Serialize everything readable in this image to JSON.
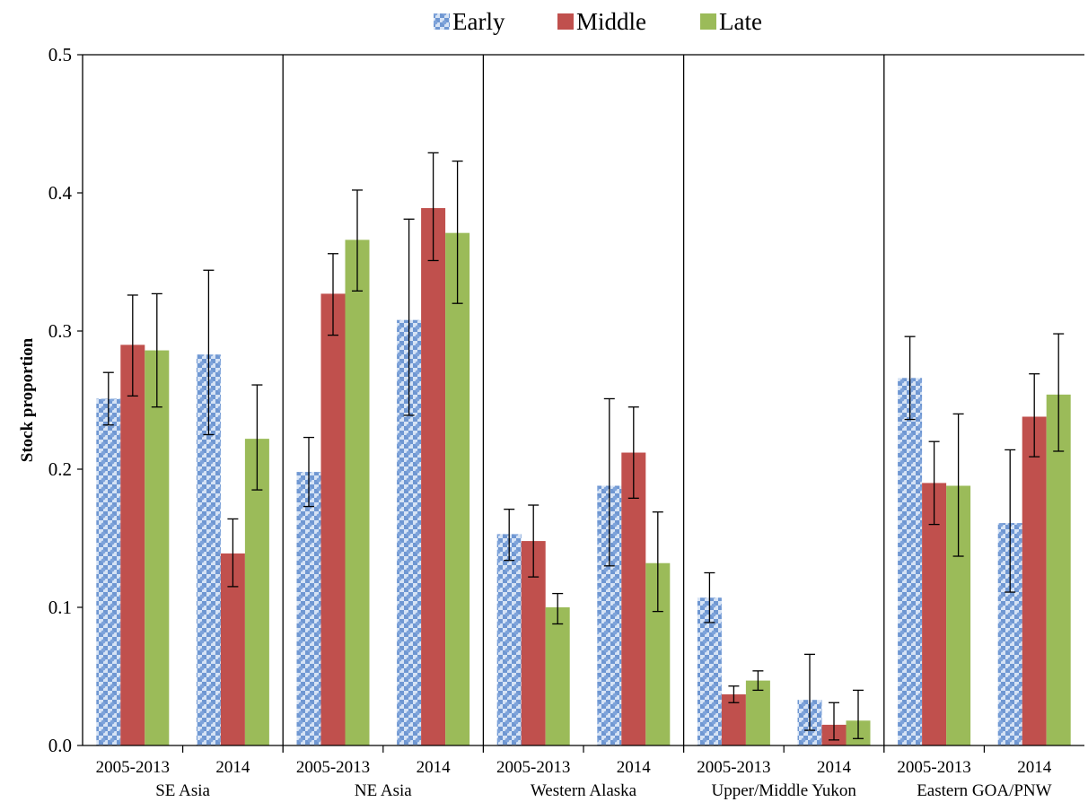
{
  "chart_data": {
    "type": "bar",
    "ylabel": "Stock proportion",
    "ylim": [
      0,
      0.5
    ],
    "yticks": [
      "0.0",
      "0.1",
      "0.2",
      "0.3",
      "0.4",
      "0.5"
    ],
    "legend_position": "top-center",
    "grid": false,
    "series": [
      {
        "name": "Early",
        "color": "#6f97d2",
        "pattern": "checker-dots"
      },
      {
        "name": "Middle",
        "color": "#c0504d"
      },
      {
        "name": "Late",
        "color": "#9bbb59"
      }
    ],
    "groups": [
      {
        "name": "SE Asia",
        "categories": [
          {
            "label": "2005-2013",
            "values": [
              0.251,
              0.29,
              0.286
            ],
            "err_low": [
              0.232,
              0.253,
              0.245
            ],
            "err_high": [
              0.27,
              0.326,
              0.327
            ]
          },
          {
            "label": "2014",
            "values": [
              0.283,
              0.139,
              0.222
            ],
            "err_low": [
              0.225,
              0.115,
              0.185
            ],
            "err_high": [
              0.344,
              0.164,
              0.261
            ]
          }
        ]
      },
      {
        "name": "NE Asia",
        "categories": [
          {
            "label": "2005-2013",
            "values": [
              0.198,
              0.327,
              0.366
            ],
            "err_low": [
              0.173,
              0.297,
              0.329
            ],
            "err_high": [
              0.223,
              0.356,
              0.402
            ]
          },
          {
            "label": "2014",
            "values": [
              0.308,
              0.389,
              0.371
            ],
            "err_low": [
              0.239,
              0.351,
              0.32
            ],
            "err_high": [
              0.381,
              0.429,
              0.423
            ]
          }
        ]
      },
      {
        "name": "Western Alaska",
        "categories": [
          {
            "label": "2005-2013",
            "values": [
              0.153,
              0.148,
              0.1
            ],
            "err_low": [
              0.134,
              0.122,
              0.088
            ],
            "err_high": [
              0.171,
              0.174,
              0.11
            ]
          },
          {
            "label": "2014",
            "values": [
              0.188,
              0.212,
              0.132
            ],
            "err_low": [
              0.13,
              0.179,
              0.097
            ],
            "err_high": [
              0.251,
              0.245,
              0.169
            ]
          }
        ]
      },
      {
        "name": "Upper/Middle Yukon",
        "categories": [
          {
            "label": "2005-2013",
            "values": [
              0.107,
              0.037,
              0.047
            ],
            "err_low": [
              0.089,
              0.031,
              0.04
            ],
            "err_high": [
              0.125,
              0.043,
              0.054
            ]
          },
          {
            "label": "2014",
            "values": [
              0.033,
              0.015,
              0.018
            ],
            "err_low": [
              0.011,
              0.004,
              0.005
            ],
            "err_high": [
              0.066,
              0.031,
              0.04
            ]
          }
        ]
      },
      {
        "name": "Eastern GOA/PNW",
        "categories": [
          {
            "label": "2005-2013",
            "values": [
              0.266,
              0.19,
              0.188
            ],
            "err_low": [
              0.236,
              0.16,
              0.137
            ],
            "err_high": [
              0.296,
              0.22,
              0.24
            ]
          },
          {
            "label": "2014",
            "values": [
              0.161,
              0.238,
              0.254
            ],
            "err_low": [
              0.111,
              0.209,
              0.213
            ],
            "err_high": [
              0.214,
              0.269,
              0.298
            ]
          }
        ]
      }
    ]
  }
}
